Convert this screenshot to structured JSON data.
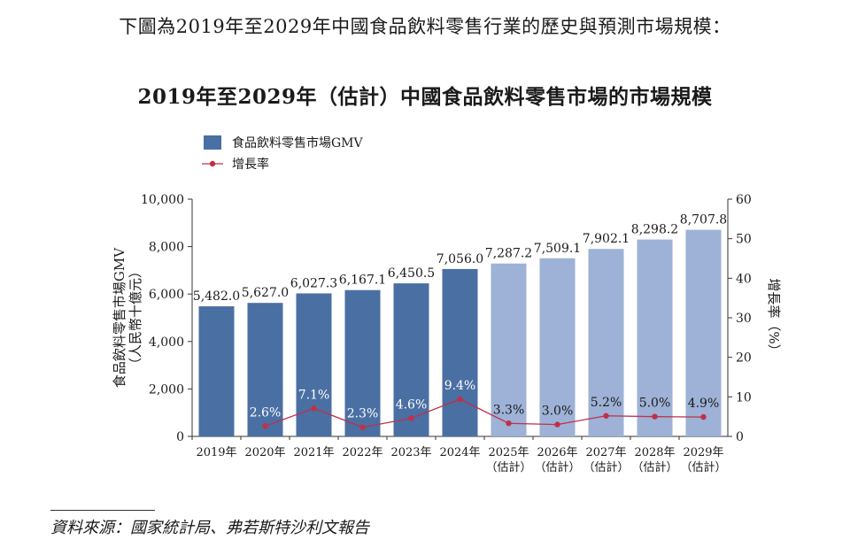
{
  "intro_text": "下圖為2019年至2029年中國食品飲料零售行業的歷史與預測市場規模：",
  "source_text": "資料來源：國家統計局、弗若斯特沙利文報告",
  "colors": {
    "bar_historical": "#4a6fa3",
    "bar_forecast": "#9db2d6",
    "growth_line": "#c0304a",
    "axis": "#333333"
  },
  "chart_data": {
    "type": "bar",
    "title": "2019年至2029年（估計）中國食品飲料零售市場的市場規模",
    "ylabel_left": "食品飲料零售市場GMV",
    "ylabel_left_unit": "（人民幣十億元）",
    "ylabel_right": "增長率（%）",
    "ylim_left": [
      0,
      10000
    ],
    "yticks_left": [
      "0",
      "2,000",
      "4,000",
      "6,000",
      "8,000",
      "10,000"
    ],
    "ylim_right": [
      0,
      60
    ],
    "yticks_right": [
      "0",
      "10",
      "20",
      "30",
      "40",
      "50",
      "60"
    ],
    "legend": [
      "食品飲料零售市場GMV",
      "增長率"
    ],
    "legend_position": "top-left",
    "categories": [
      {
        "year": "2019年",
        "note": ""
      },
      {
        "year": "2020年",
        "note": ""
      },
      {
        "year": "2021年",
        "note": ""
      },
      {
        "year": "2022年",
        "note": ""
      },
      {
        "year": "2023年",
        "note": ""
      },
      {
        "year": "2024年",
        "note": ""
      },
      {
        "year": "2025年",
        "note": "（估計）"
      },
      {
        "year": "2026年",
        "note": "（估計）"
      },
      {
        "year": "2027年",
        "note": "（估計）"
      },
      {
        "year": "2028年",
        "note": "（估計）"
      },
      {
        "year": "2029年",
        "note": "（估計）"
      }
    ],
    "forecast_from_index": 6,
    "series": [
      {
        "name": "食品飲料零售市場GMV",
        "kind": "bar",
        "values": [
          5482.0,
          5627.0,
          6027.3,
          6167.1,
          6450.5,
          7056.0,
          7287.2,
          7509.1,
          7902.1,
          8298.2,
          8707.8
        ],
        "labels": [
          "5,482.0",
          "5,627.0",
          "6,027.3",
          "6,167.1",
          "6,450.5",
          "7,056.0",
          "7,287.2",
          "7,509.1",
          "7,902.1",
          "8,298.2",
          "8,707.8"
        ]
      },
      {
        "name": "增長率",
        "kind": "line",
        "values": [
          null,
          2.6,
          7.1,
          2.3,
          4.6,
          9.4,
          3.3,
          3.0,
          5.2,
          5.0,
          4.9
        ],
        "labels": [
          "",
          "2.6%",
          "7.1%",
          "2.3%",
          "4.6%",
          "9.4%",
          "3.3%",
          "3.0%",
          "5.2%",
          "5.0%",
          "4.9%"
        ]
      }
    ]
  }
}
